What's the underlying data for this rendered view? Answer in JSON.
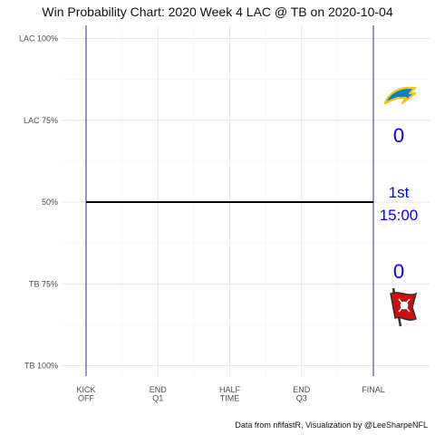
{
  "chart_data": {
    "type": "line",
    "title": "Win Probability Chart: 2020 Week 4 LAC @ TB on 2020-10-04",
    "caption": "Data from nflfastR, Visualization by @LeeSharpeNFL",
    "y_ticks": [
      {
        "value": 100,
        "label": "LAC 100%"
      },
      {
        "value": 75,
        "label": "LAC 75%"
      },
      {
        "value": 50,
        "label": "50%"
      },
      {
        "value": 25,
        "label": "TB 75%"
      },
      {
        "value": 0,
        "label": "TB 100%"
      }
    ],
    "x_ticks": [
      {
        "value": 0,
        "label": [
          "KICK",
          "OFF"
        ]
      },
      {
        "value": 900,
        "label": [
          "END",
          "Q1"
        ]
      },
      {
        "value": 1800,
        "label": [
          "HALF",
          "TIME"
        ]
      },
      {
        "value": 2700,
        "label": [
          "END",
          "Q3"
        ]
      },
      {
        "value": 3600,
        "label": [
          "FINAL"
        ]
      }
    ],
    "xlim": [
      0,
      3600
    ],
    "ylim": [
      0,
      100
    ],
    "grid": true,
    "series": [
      {
        "x": [
          0,
          3600
        ],
        "y": [
          50,
          50
        ],
        "color": "#000000"
      }
    ],
    "vlines": [
      0,
      3600
    ],
    "vline_color": "#1a1a8c",
    "away": {
      "team": "LAC",
      "score": "0",
      "logo_icon": "chargers-bolt-icon",
      "color": "#0080C6",
      "accent": "#FFC20E"
    },
    "home": {
      "team": "TB",
      "score": "0",
      "logo_icon": "buccaneers-flag-icon",
      "color": "#D50A0A",
      "accent": "#34302B"
    },
    "game_state": {
      "quarter": "1st",
      "clock": "15:00"
    },
    "text_color": "#0000ff"
  }
}
